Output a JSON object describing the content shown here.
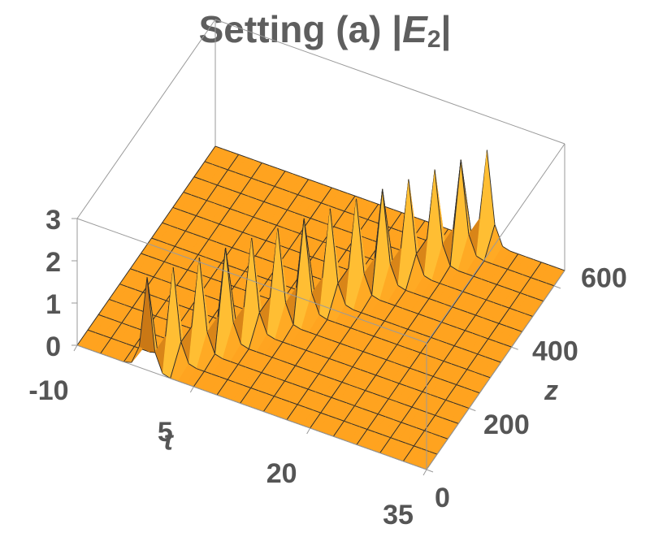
{
  "chart_data": {
    "type": "surface",
    "title_parts": [
      "Setting (a) |",
      "E",
      "2",
      "|"
    ],
    "xlabel": "t",
    "ylabel": "z",
    "color": "#ffa31f",
    "mesh_color": "#2a2a2a",
    "box_color": "#9a9a9a",
    "xlim": [
      -10,
      35
    ],
    "xticks": [
      -10,
      5,
      20,
      35
    ],
    "ylim": [
      0,
      650
    ],
    "yticks": [
      0,
      200,
      400,
      600
    ],
    "zlim": [
      0,
      3
    ],
    "zticks": [
      0,
      1,
      2,
      3
    ],
    "x": [
      -10,
      -9,
      -8,
      -7,
      -6,
      -5,
      -4,
      -3,
      -2,
      -1,
      0,
      1,
      2,
      3,
      4,
      5,
      6,
      7,
      8,
      9,
      10,
      11,
      12,
      13,
      14,
      15,
      16,
      17,
      18,
      19,
      20,
      21,
      22,
      23,
      24,
      25,
      26,
      27,
      28,
      29,
      30,
      31,
      32,
      33,
      34,
      35
    ],
    "y": [
      0,
      50,
      100,
      150,
      200,
      250,
      300,
      350,
      400,
      450,
      500,
      550,
      600,
      650
    ],
    "values": [
      [
        0,
        0,
        0,
        0,
        0,
        0,
        0,
        0.05,
        0.5,
        2.2,
        0.5,
        0.05,
        0,
        0,
        0,
        0,
        0,
        0,
        0,
        0,
        0,
        0,
        0,
        0,
        0,
        0,
        0,
        0,
        0,
        0,
        0,
        0,
        0,
        0,
        0,
        0,
        0,
        0,
        0,
        0,
        0,
        0,
        0,
        0,
        0,
        0
      ],
      [
        0,
        0,
        0,
        0,
        0,
        0,
        0,
        0,
        0,
        0.05,
        0.5,
        2.2,
        0.5,
        0.05,
        0,
        0,
        0,
        0,
        0,
        0,
        0,
        0,
        0,
        0,
        0,
        0,
        0,
        0,
        0,
        0,
        0,
        0,
        0,
        0,
        0,
        0,
        0,
        0,
        0,
        0,
        0,
        0,
        0,
        0,
        0,
        0
      ],
      [
        0,
        0,
        0,
        0,
        0,
        0,
        0,
        0,
        0,
        0,
        0,
        0.05,
        0.5,
        2.2,
        0.5,
        0.05,
        0,
        0,
        0,
        0,
        0,
        0,
        0,
        0,
        0,
        0,
        0,
        0,
        0,
        0,
        0,
        0,
        0,
        0,
        0,
        0,
        0,
        0,
        0,
        0,
        0,
        0,
        0,
        0,
        0,
        0
      ],
      [
        0,
        0,
        0,
        0,
        0,
        0,
        0,
        0,
        0,
        0,
        0,
        0,
        0,
        0.05,
        0.5,
        2.2,
        0.5,
        0.05,
        0,
        0,
        0,
        0,
        0,
        0,
        0,
        0,
        0,
        0,
        0,
        0,
        0,
        0,
        0,
        0,
        0,
        0,
        0,
        0,
        0,
        0,
        0,
        0,
        0,
        0,
        0,
        0
      ],
      [
        0,
        0,
        0,
        0,
        0,
        0,
        0,
        0,
        0,
        0,
        0,
        0,
        0,
        0,
        0,
        0.05,
        0.5,
        2.2,
        0.5,
        0.05,
        0,
        0,
        0,
        0,
        0,
        0,
        0,
        0,
        0,
        0,
        0,
        0,
        0,
        0,
        0,
        0,
        0,
        0,
        0,
        0,
        0,
        0,
        0,
        0,
        0,
        0
      ],
      [
        0,
        0,
        0,
        0,
        0,
        0,
        0,
        0,
        0,
        0,
        0,
        0,
        0,
        0,
        0,
        0,
        0,
        0.05,
        0.5,
        2.2,
        0.5,
        0.05,
        0,
        0,
        0,
        0,
        0,
        0,
        0,
        0,
        0,
        0,
        0,
        0,
        0,
        0,
        0,
        0,
        0,
        0,
        0,
        0,
        0,
        0,
        0,
        0
      ],
      [
        0,
        0,
        0,
        0,
        0,
        0,
        0,
        0,
        0,
        0,
        0,
        0,
        0,
        0,
        0,
        0,
        0,
        0,
        0,
        0.05,
        0.5,
        2.2,
        0.5,
        0.05,
        0,
        0,
        0,
        0,
        0,
        0,
        0,
        0,
        0,
        0,
        0,
        0,
        0,
        0,
        0,
        0,
        0,
        0,
        0,
        0,
        0,
        0
      ],
      [
        0,
        0,
        0,
        0,
        0,
        0,
        0,
        0,
        0,
        0,
        0,
        0,
        0,
        0,
        0,
        0,
        0,
        0,
        0,
        0,
        0,
        0.05,
        0.5,
        2.2,
        0.5,
        0.05,
        0,
        0,
        0,
        0,
        0,
        0,
        0,
        0,
        0,
        0,
        0,
        0,
        0,
        0,
        0,
        0,
        0,
        0,
        0,
        0
      ],
      [
        0,
        0,
        0,
        0,
        0,
        0,
        0,
        0,
        0,
        0,
        0,
        0,
        0,
        0,
        0,
        0,
        0,
        0,
        0,
        0,
        0,
        0,
        0,
        0.05,
        0.5,
        2.2,
        0.5,
        0.05,
        0,
        0,
        0,
        0,
        0,
        0,
        0,
        0,
        0,
        0,
        0,
        0,
        0,
        0,
        0,
        0,
        0,
        0
      ],
      [
        0,
        0,
        0,
        0,
        0,
        0,
        0,
        0,
        0,
        0,
        0,
        0,
        0,
        0,
        0,
        0,
        0,
        0,
        0,
        0,
        0,
        0,
        0,
        0,
        0,
        0.05,
        0.5,
        2.2,
        0.5,
        0.05,
        0,
        0,
        0,
        0,
        0,
        0,
        0,
        0,
        0,
        0,
        0,
        0,
        0,
        0,
        0,
        0
      ],
      [
        0,
        0,
        0,
        0,
        0,
        0,
        0,
        0,
        0,
        0,
        0,
        0,
        0,
        0,
        0,
        0,
        0,
        0,
        0,
        0,
        0,
        0,
        0,
        0,
        0,
        0,
        0,
        0.05,
        0.5,
        2.2,
        0.5,
        0.05,
        0,
        0,
        0,
        0,
        0,
        0,
        0,
        0,
        0,
        0,
        0,
        0,
        0,
        0
      ],
      [
        0,
        0,
        0,
        0,
        0,
        0,
        0,
        0,
        0,
        0,
        0,
        0,
        0,
        0,
        0,
        0,
        0,
        0,
        0,
        0,
        0,
        0,
        0,
        0,
        0,
        0,
        0,
        0,
        0,
        0.05,
        0.5,
        2.2,
        0.5,
        0.05,
        0,
        0,
        0,
        0,
        0,
        0,
        0,
        0,
        0,
        0,
        0,
        0
      ],
      [
        0,
        0,
        0,
        0,
        0,
        0,
        0,
        0,
        0,
        0,
        0,
        0,
        0,
        0,
        0,
        0,
        0,
        0,
        0,
        0,
        0,
        0,
        0,
        0,
        0,
        0,
        0,
        0,
        0,
        0,
        0,
        0.05,
        0.5,
        2.2,
        0.5,
        0.05,
        0,
        0,
        0,
        0,
        0,
        0,
        0,
        0,
        0,
        0
      ],
      [
        0,
        0,
        0,
        0,
        0,
        0,
        0,
        0,
        0,
        0,
        0,
        0,
        0,
        0,
        0,
        0,
        0,
        0,
        0,
        0,
        0,
        0,
        0,
        0,
        0,
        0,
        0,
        0,
        0,
        0,
        0,
        0,
        0,
        0.05,
        0.5,
        2.2,
        0.5,
        0.05,
        0,
        0,
        0,
        0,
        0,
        0,
        0,
        0
      ]
    ]
  }
}
